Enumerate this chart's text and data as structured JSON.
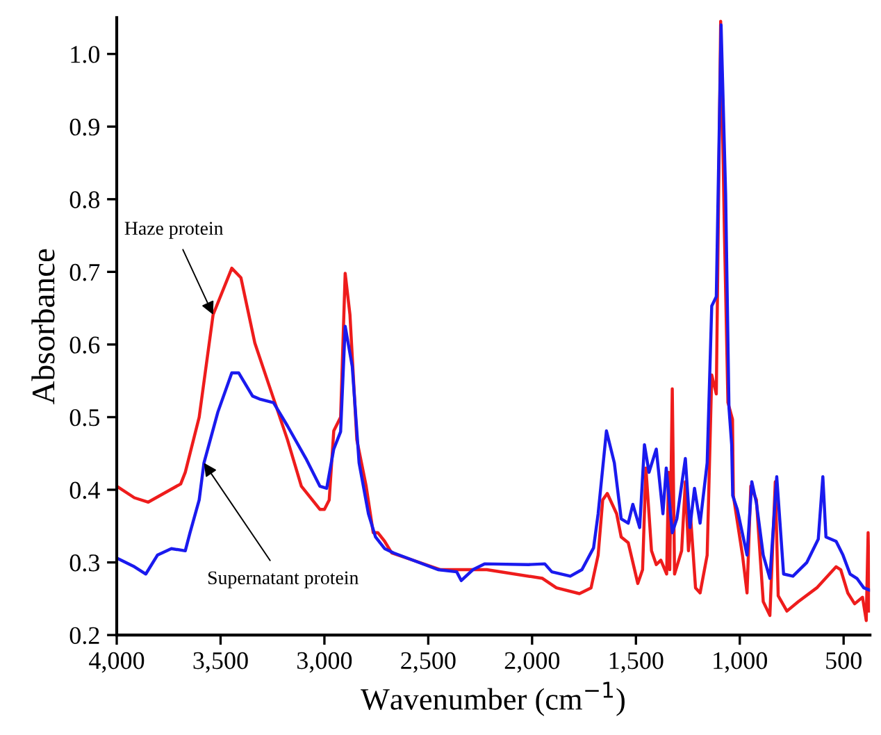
{
  "chart_data": {
    "type": "line",
    "xlabel": "Wavenumber (cm$^{−1}$)",
    "ylabel": "Absorbance",
    "xlim": [
      4000,
      373
    ],
    "ylim": [
      0.2,
      1.05
    ],
    "xticks": [
      {
        "value": 4000,
        "label": "4,000"
      },
      {
        "value": 3500,
        "label": "3,500"
      },
      {
        "value": 3000,
        "label": "3,000"
      },
      {
        "value": 2500,
        "label": "2,500"
      },
      {
        "value": 2000,
        "label": "2,000"
      },
      {
        "value": 1500,
        "label": "1,500"
      },
      {
        "value": 1000,
        "label": "1,000"
      },
      {
        "value": 500,
        "label": "500"
      }
    ],
    "yticks": [
      {
        "value": 0.2,
        "label": "0.2"
      },
      {
        "value": 0.3,
        "label": "0.3"
      },
      {
        "value": 0.4,
        "label": "0.4"
      },
      {
        "value": 0.5,
        "label": "0.5"
      },
      {
        "value": 0.6,
        "label": "0.6"
      },
      {
        "value": 0.7,
        "label": "0.7"
      },
      {
        "value": 0.8,
        "label": "0.8"
      },
      {
        "value": 0.9,
        "label": "0.9"
      },
      {
        "value": 1.0,
        "label": "1.0"
      }
    ],
    "grid": false,
    "legend": false,
    "marker": "none",
    "line_style": "solid",
    "series": [
      {
        "name": "Haze protein",
        "color": "#ee1c1c",
        "x": [
          4000,
          3915,
          3848,
          3692,
          3670,
          3603,
          3536,
          3446,
          3402,
          3335,
          3268,
          3178,
          3111,
          3022,
          3000,
          2977,
          2955,
          2922,
          2900,
          2877,
          2844,
          2799,
          2765,
          2743,
          2710,
          2676,
          2441,
          2374,
          2218,
          1950,
          1883,
          1772,
          1716,
          1682,
          1660,
          1638,
          1593,
          1571,
          1537,
          1491,
          1468,
          1452,
          1425,
          1402,
          1380,
          1352,
          1343,
          1337,
          1325,
          1314,
          1280,
          1262,
          1247,
          1236,
          1213,
          1191,
          1157,
          1135,
          1113,
          1092,
          1074,
          1057,
          1035,
          1031,
          987,
          965,
          947,
          920,
          887,
          855,
          829,
          815,
          773,
          718,
          629,
          536,
          514,
          480,
          447,
          409,
          391,
          382,
          376
        ],
        "values": [
          0.405,
          0.389,
          0.383,
          0.408,
          0.424,
          0.5,
          0.641,
          0.705,
          0.692,
          0.602,
          0.545,
          0.469,
          0.405,
          0.373,
          0.373,
          0.386,
          0.481,
          0.5,
          0.698,
          0.641,
          0.469,
          0.405,
          0.341,
          0.341,
          0.329,
          0.313,
          0.29,
          0.29,
          0.29,
          0.278,
          0.265,
          0.257,
          0.265,
          0.31,
          0.386,
          0.395,
          0.367,
          0.335,
          0.327,
          0.271,
          0.29,
          0.43,
          0.316,
          0.297,
          0.303,
          0.284,
          0.424,
          0.29,
          0.539,
          0.284,
          0.316,
          0.411,
          0.316,
          0.36,
          0.265,
          0.258,
          0.31,
          0.558,
          0.532,
          1.045,
          0.755,
          0.52,
          0.497,
          0.392,
          0.31,
          0.258,
          0.405,
          0.386,
          0.246,
          0.227,
          0.411,
          0.254,
          0.233,
          0.246,
          0.265,
          0.294,
          0.29,
          0.258,
          0.243,
          0.252,
          0.22,
          0.341,
          0.233
        ]
      },
      {
        "name": "Supernatant protein",
        "color": "#1a1aee",
        "x": [
          4000,
          3915,
          3860,
          3804,
          3737,
          3670,
          3647,
          3603,
          3580,
          3513,
          3446,
          3413,
          3346,
          3313,
          3245,
          3178,
          3089,
          3022,
          2989,
          2955,
          2922,
          2900,
          2866,
          2833,
          2788,
          2754,
          2710,
          2666,
          2453,
          2363,
          2341,
          2285,
          2229,
          2017,
          1939,
          1905,
          1816,
          1760,
          1704,
          1682,
          1642,
          1604,
          1571,
          1537,
          1515,
          1482,
          1459,
          1437,
          1402,
          1370,
          1354,
          1325,
          1303,
          1262,
          1240,
          1218,
          1191,
          1157,
          1135,
          1113,
          1090,
          1068,
          1052,
          1039,
          1034,
          1012,
          965,
          942,
          920,
          887,
          855,
          822,
          789,
          744,
          677,
          622,
          600,
          585,
          536,
          503,
          469,
          436,
          403,
          376
        ],
        "values": [
          0.306,
          0.294,
          0.284,
          0.31,
          0.319,
          0.316,
          0.341,
          0.386,
          0.437,
          0.507,
          0.561,
          0.561,
          0.529,
          0.525,
          0.52,
          0.488,
          0.443,
          0.405,
          0.402,
          0.456,
          0.48,
          0.625,
          0.57,
          0.437,
          0.367,
          0.335,
          0.319,
          0.313,
          0.29,
          0.287,
          0.275,
          0.29,
          0.298,
          0.297,
          0.298,
          0.287,
          0.281,
          0.29,
          0.32,
          0.367,
          0.481,
          0.437,
          0.36,
          0.354,
          0.38,
          0.348,
          0.462,
          0.424,
          0.456,
          0.367,
          0.43,
          0.341,
          0.36,
          0.443,
          0.348,
          0.402,
          0.354,
          0.437,
          0.653,
          0.666,
          1.04,
          0.806,
          0.513,
          0.462,
          0.392,
          0.373,
          0.31,
          0.411,
          0.382,
          0.31,
          0.278,
          0.418,
          0.284,
          0.281,
          0.3,
          0.332,
          0.418,
          0.335,
          0.329,
          0.31,
          0.284,
          0.278,
          0.265,
          0.262
        ]
      }
    ]
  }
}
